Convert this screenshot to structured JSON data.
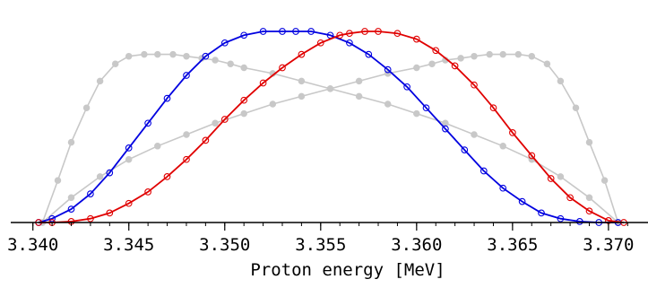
{
  "chart_data": {
    "type": "line",
    "xlabel": "Proton energy [MeV]",
    "ylabel": "",
    "title": "",
    "xlim": [
      3.3395,
      3.3715
    ],
    "ylim": [
      0,
      1.08
    ],
    "x_ticks": [
      "3.340",
      "3.345",
      "3.350",
      "3.355",
      "3.360",
      "3.365",
      "3.370"
    ],
    "x_tick_values": [
      3.34,
      3.345,
      3.35,
      3.355,
      3.36,
      3.365,
      3.37
    ],
    "grid": false,
    "legend": "none",
    "series": [
      {
        "color": "#c8c8c8",
        "marker": "filled-circle",
        "x": [
          3.3405,
          3.3413,
          3.342,
          3.3428,
          3.3435,
          3.3443,
          3.345,
          3.3458,
          3.3465,
          3.3473,
          3.348,
          3.3488,
          3.3495,
          3.3503,
          3.351,
          3.3525,
          3.354,
          3.3555,
          3.357,
          3.3585,
          3.36,
          3.3615,
          3.363,
          3.3645,
          3.366,
          3.3675,
          3.369,
          3.3705
        ],
        "y": [
          0.0,
          0.22,
          0.42,
          0.6,
          0.74,
          0.83,
          0.87,
          0.88,
          0.88,
          0.88,
          0.87,
          0.86,
          0.85,
          0.83,
          0.81,
          0.78,
          0.74,
          0.7,
          0.66,
          0.62,
          0.57,
          0.52,
          0.46,
          0.4,
          0.33,
          0.24,
          0.13,
          0.0
        ]
      },
      {
        "color": "#c8c8c8",
        "marker": "filled-circle",
        "x": [
          3.3405,
          3.342,
          3.3435,
          3.345,
          3.3465,
          3.348,
          3.3495,
          3.351,
          3.3525,
          3.354,
          3.3555,
          3.357,
          3.3585,
          3.36,
          3.3608,
          3.3615,
          3.3623,
          3.363,
          3.3638,
          3.3645,
          3.3653,
          3.366,
          3.3668,
          3.3675,
          3.3683,
          3.369,
          3.3698,
          3.3705
        ],
        "y": [
          0.0,
          0.13,
          0.24,
          0.33,
          0.4,
          0.46,
          0.52,
          0.57,
          0.62,
          0.66,
          0.7,
          0.74,
          0.78,
          0.81,
          0.83,
          0.85,
          0.86,
          0.87,
          0.88,
          0.88,
          0.88,
          0.87,
          0.83,
          0.74,
          0.6,
          0.42,
          0.22,
          0.0
        ]
      },
      {
        "color": "#0000e0",
        "marker": "open-circle",
        "peak_x": 3.3537,
        "x": [
          3.3403,
          3.341,
          3.342,
          3.343,
          3.344,
          3.345,
          3.346,
          3.347,
          3.348,
          3.349,
          3.35,
          3.351,
          3.352,
          3.353,
          3.3537,
          3.3545,
          3.3555,
          3.3565,
          3.3575,
          3.3585,
          3.3595,
          3.3605,
          3.3615,
          3.3625,
          3.3635,
          3.3645,
          3.3655,
          3.3665,
          3.3675,
          3.3685,
          3.3695,
          3.3705
        ],
        "y": [
          0.0,
          0.02,
          0.07,
          0.15,
          0.26,
          0.39,
          0.52,
          0.65,
          0.77,
          0.87,
          0.94,
          0.98,
          1.0,
          1.0,
          1.0,
          1.0,
          0.98,
          0.94,
          0.88,
          0.8,
          0.71,
          0.6,
          0.49,
          0.38,
          0.27,
          0.18,
          0.11,
          0.05,
          0.02,
          0.005,
          0.0,
          0.0
        ]
      },
      {
        "color": "#e00000",
        "marker": "open-circle",
        "peak_x": 3.3573,
        "x": [
          3.3403,
          3.341,
          3.342,
          3.343,
          3.344,
          3.345,
          3.346,
          3.347,
          3.348,
          3.349,
          3.35,
          3.351,
          3.352,
          3.353,
          3.354,
          3.355,
          3.356,
          3.3565,
          3.3573,
          3.358,
          3.359,
          3.36,
          3.361,
          3.362,
          3.363,
          3.364,
          3.365,
          3.366,
          3.367,
          3.368,
          3.369,
          3.37,
          3.3708
        ],
        "y": [
          0.0,
          0.0,
          0.005,
          0.02,
          0.05,
          0.1,
          0.16,
          0.24,
          0.33,
          0.43,
          0.54,
          0.64,
          0.73,
          0.81,
          0.88,
          0.94,
          0.98,
          0.99,
          1.0,
          1.0,
          0.99,
          0.96,
          0.9,
          0.82,
          0.72,
          0.6,
          0.47,
          0.35,
          0.23,
          0.13,
          0.06,
          0.01,
          0.0
        ]
      }
    ]
  }
}
